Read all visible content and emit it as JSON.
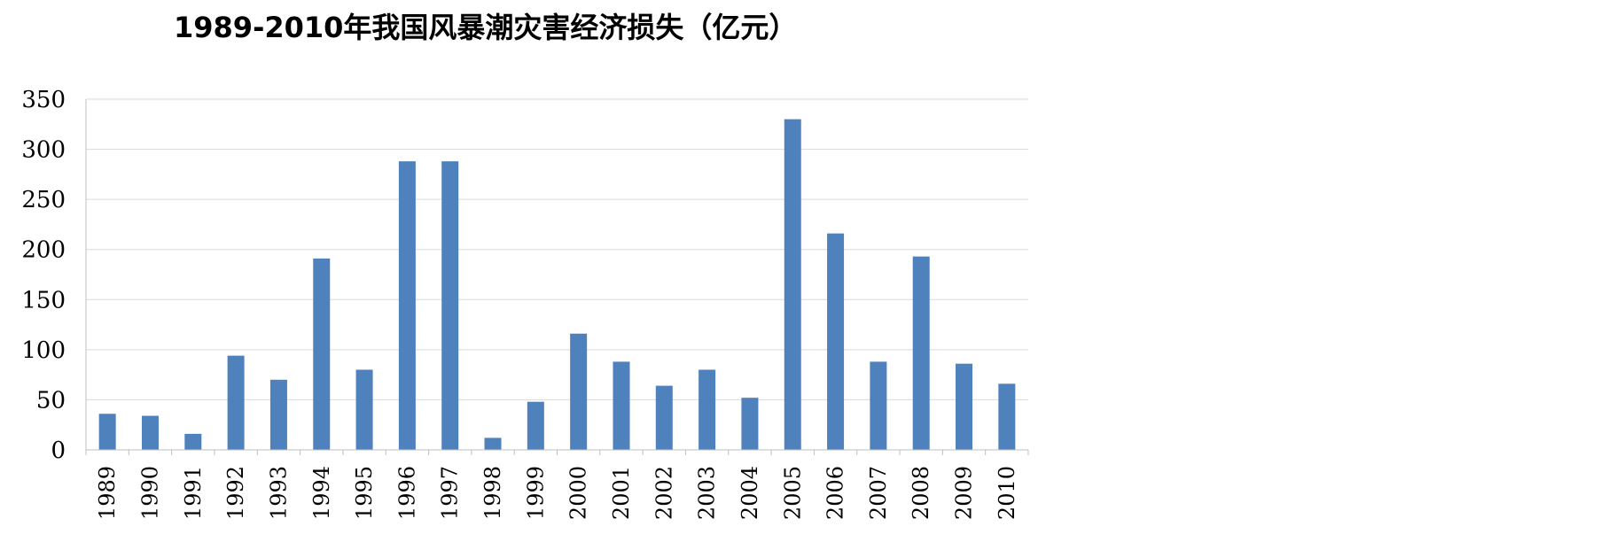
{
  "chart_data": {
    "type": "bar",
    "title": "1989-2010年我国风暴潮灾害经济损失（亿元）",
    "xlabel": "",
    "ylabel": "",
    "categories": [
      "1989",
      "1990",
      "1991",
      "1992",
      "1993",
      "1994",
      "1995",
      "1996",
      "1997",
      "1998",
      "1999",
      "2000",
      "2001",
      "2002",
      "2003",
      "2004",
      "2005",
      "2006",
      "2007",
      "2008",
      "2009",
      "2010"
    ],
    "values": [
      36,
      34,
      16,
      94,
      70,
      191,
      80,
      288,
      288,
      12,
      48,
      116,
      88,
      64,
      80,
      52,
      330,
      216,
      88,
      193,
      86,
      66
    ],
    "ylim": [
      0,
      350
    ],
    "yticks": [
      0,
      50,
      100,
      150,
      200,
      250,
      300,
      350
    ],
    "grid": true,
    "colors": {
      "bar": "#4F81BD",
      "grid": "#D9D9D9",
      "axis": "#BFBFBF"
    }
  }
}
